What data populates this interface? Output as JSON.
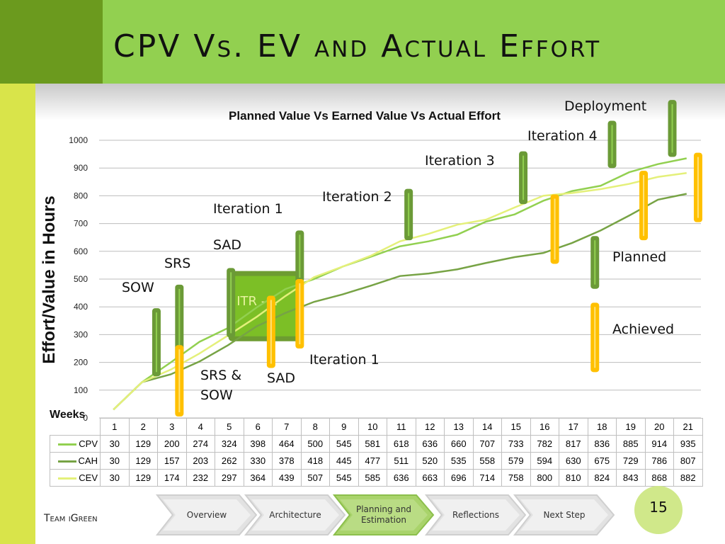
{
  "slide": {
    "title": "CPV Vs. EV and Actual Effort",
    "team": "Team iGreen",
    "page_number": "15"
  },
  "nav": {
    "steps": [
      "Overview",
      "Architecture",
      "Planning and Estimation",
      "Reflections",
      "Next Step"
    ],
    "active_index": 2
  },
  "chart_data": {
    "type": "line",
    "title": "Planned Value Vs Earned Value Vs Actual Effort",
    "ylabel": "Effort/Value in Hours",
    "xlabel": "Weeks",
    "ylim": [
      0,
      1000
    ],
    "yticks": [
      0,
      100,
      200,
      300,
      400,
      500,
      600,
      700,
      800,
      900,
      1000
    ],
    "x": [
      1,
      2,
      3,
      4,
      5,
      6,
      7,
      8,
      9,
      10,
      11,
      12,
      13,
      14,
      15,
      16,
      17,
      18,
      19,
      20,
      21
    ],
    "series": [
      {
        "name": "CPV",
        "color": "#92d050",
        "values": [
          30,
          129,
          200,
          274,
          324,
          398,
          464,
          500,
          545,
          581,
          618,
          636,
          660,
          707,
          733,
          782,
          817,
          836,
          885,
          914,
          935
        ]
      },
      {
        "name": "CAH",
        "color": "#77a345",
        "values": [
          30,
          129,
          157,
          203,
          262,
          330,
          378,
          418,
          445,
          477,
          511,
          520,
          535,
          558,
          579,
          594,
          630,
          675,
          729,
          786,
          807
        ]
      },
      {
        "name": "CEV",
        "color": "#e4f07a",
        "values": [
          30,
          129,
          174,
          232,
          297,
          364,
          439,
          507,
          545,
          585,
          636,
          663,
          696,
          714,
          758,
          800,
          810,
          824,
          843,
          868,
          882
        ]
      }
    ],
    "legend": "table-below",
    "grid": true,
    "annotations": {
      "planned_bars": [
        {
          "x": 2.5,
          "from": 150,
          "to": 395
        },
        {
          "x": 3.3,
          "from": 200,
          "to": 480
        },
        {
          "x": 5.1,
          "from": 290,
          "to": 540
        },
        {
          "x": 7.5,
          "from": 490,
          "to": 675
        },
        {
          "x": 11.3,
          "from": 640,
          "to": 825
        },
        {
          "x": 15.3,
          "from": 770,
          "to": 960
        },
        {
          "x": 18.4,
          "from": 900,
          "to": 1070
        },
        {
          "x": 20.5,
          "from": 940,
          "to": 1145
        },
        {
          "x": 17.8,
          "from": 465,
          "to": 655
        }
      ],
      "achieved_bars": [
        {
          "x": 3.3,
          "from": 5,
          "to": 262
        },
        {
          "x": 6.5,
          "from": 180,
          "to": 440
        },
        {
          "x": 7.5,
          "from": 250,
          "to": 500
        },
        {
          "x": 16.4,
          "from": 555,
          "to": 805
        },
        {
          "x": 19.5,
          "from": 640,
          "to": 890
        },
        {
          "x": 21.4,
          "from": 705,
          "to": 955
        },
        {
          "x": 17.8,
          "from": 165,
          "to": 415
        }
      ],
      "itr_box": {
        "label": "ITR - 1",
        "x_from": 5.1,
        "x_to": 7.5,
        "y_from": 285,
        "y_to": 520
      },
      "labels": {
        "deployment": "Deployment",
        "iteration4": "Iteration 4",
        "iteration3": "Iteration 3",
        "iteration2": "Iteration 2",
        "iteration1_top": "Iteration 1",
        "sad_top": "SAD",
        "srs_top": "SRS",
        "sow": "SOW",
        "planned": "Planned",
        "achieved": "Achieved",
        "iteration1_bottom": "Iteration 1",
        "srs_sow": "SRS &\nSOW",
        "sad_bottom": "SAD"
      }
    }
  },
  "table": {
    "weeks": [
      "1",
      "2",
      "3",
      "4",
      "5",
      "6",
      "7",
      "8",
      "9",
      "10",
      "11",
      "12",
      "13",
      "14",
      "15",
      "16",
      "17",
      "18",
      "19",
      "20",
      "21"
    ]
  }
}
